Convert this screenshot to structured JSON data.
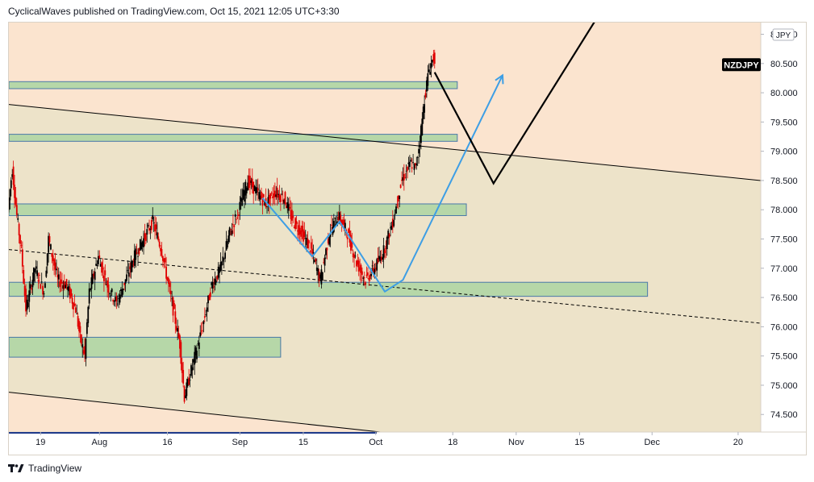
{
  "header": {
    "text": "CyclicalWaves published on TradingView.com, Oct 15, 2021 12:05 UTC+3:30"
  },
  "footer": {
    "brand": "TradingView",
    "logo": "tradingview-logo-icon"
  },
  "colors": {
    "background_upper": "#fbe4cf",
    "channel_fill": "#ede3c9",
    "zone_fill": "#b6d7a8",
    "zone_border": "#4a78a8",
    "candle_up": "#000000",
    "candle_down": "#e00000",
    "projection_blue": "#3d9ee5",
    "projection_black": "#000000",
    "symbol_badge": "#000000"
  },
  "chart_data": {
    "type": "candlestick",
    "symbol": "NZDJPY",
    "currency": "JPY",
    "y_axis": {
      "range": [
        74.2,
        81.2
      ],
      "ticks": [
        "74.500",
        "75.000",
        "75.500",
        "76.000",
        "76.500",
        "77.000",
        "77.500",
        "78.000",
        "78.500",
        "79.000",
        "79.500",
        "80.000",
        "80.500",
        "81.000"
      ]
    },
    "x_axis": {
      "range": [
        "2021-07-12",
        "2021-12-25"
      ],
      "ticks": [
        {
          "label": "19",
          "date": "2021-07-19"
        },
        {
          "label": "Aug",
          "date": "2021-08-01"
        },
        {
          "label": "16",
          "date": "2021-08-16"
        },
        {
          "label": "Sep",
          "date": "2021-09-01"
        },
        {
          "label": "15",
          "date": "2021-09-15"
        },
        {
          "label": "Oct",
          "date": "2021-10-01"
        },
        {
          "label": "18",
          "date": "2021-10-18"
        },
        {
          "label": "Nov",
          "date": "2021-11-01"
        },
        {
          "label": "15",
          "date": "2021-11-15"
        },
        {
          "label": "Dec",
          "date": "2021-12-01"
        },
        {
          "label": "20",
          "date": "2021-12-20"
        }
      ]
    },
    "price_path": [
      [
        "2021-07-12",
        78.0
      ],
      [
        "2021-07-13",
        78.7
      ],
      [
        "2021-07-14",
        77.9
      ],
      [
        "2021-07-15",
        77.3
      ],
      [
        "2021-07-16",
        76.3
      ],
      [
        "2021-07-18",
        77.0
      ],
      [
        "2021-07-20",
        76.6
      ],
      [
        "2021-07-21",
        77.5
      ],
      [
        "2021-07-23",
        76.8
      ],
      [
        "2021-07-25",
        76.7
      ],
      [
        "2021-07-27",
        76.3
      ],
      [
        "2021-07-28",
        75.8
      ],
      [
        "2021-07-29",
        75.5
      ],
      [
        "2021-07-30",
        76.6
      ],
      [
        "2021-08-01",
        77.2
      ],
      [
        "2021-08-03",
        76.7
      ],
      [
        "2021-08-05",
        76.4
      ],
      [
        "2021-08-07",
        76.8
      ],
      [
        "2021-08-09",
        77.2
      ],
      [
        "2021-08-11",
        77.5
      ],
      [
        "2021-08-13",
        77.8
      ],
      [
        "2021-08-15",
        77.3
      ],
      [
        "2021-08-17",
        76.5
      ],
      [
        "2021-08-19",
        75.7
      ],
      [
        "2021-08-20",
        74.8
      ],
      [
        "2021-08-22",
        75.4
      ],
      [
        "2021-08-24",
        76.0
      ],
      [
        "2021-08-26",
        76.7
      ],
      [
        "2021-08-28",
        77.0
      ],
      [
        "2021-08-30",
        77.6
      ],
      [
        "2021-09-01",
        78.0
      ],
      [
        "2021-09-03",
        78.5
      ],
      [
        "2021-09-05",
        78.3
      ],
      [
        "2021-09-07",
        78.1
      ],
      [
        "2021-09-09",
        78.3
      ],
      [
        "2021-09-11",
        78.2
      ],
      [
        "2021-09-13",
        77.8
      ],
      [
        "2021-09-15",
        77.6
      ],
      [
        "2021-09-17",
        77.3
      ],
      [
        "2021-09-19",
        76.8
      ],
      [
        "2021-09-21",
        77.6
      ],
      [
        "2021-09-23",
        77.9
      ],
      [
        "2021-09-25",
        77.6
      ],
      [
        "2021-09-27",
        77.1
      ],
      [
        "2021-09-29",
        76.8
      ],
      [
        "2021-10-01",
        77.0
      ],
      [
        "2021-10-03",
        77.3
      ],
      [
        "2021-10-05",
        77.8
      ],
      [
        "2021-10-07",
        78.5
      ],
      [
        "2021-10-09",
        78.8
      ],
      [
        "2021-10-10",
        78.7
      ],
      [
        "2021-10-11",
        79.2
      ],
      [
        "2021-10-12",
        79.9
      ],
      [
        "2021-10-13",
        80.4
      ],
      [
        "2021-10-14",
        80.6
      ]
    ],
    "zones": [
      {
        "from": "2021-07-12",
        "to": "2021-10-19",
        "low": 80.07,
        "high": 80.19
      },
      {
        "from": "2021-07-12",
        "to": "2021-10-19",
        "low": 79.17,
        "high": 79.29
      },
      {
        "from": "2021-07-12",
        "to": "2021-10-21",
        "low": 77.9,
        "high": 78.1
      },
      {
        "from": "2021-07-12",
        "to": "2021-11-30",
        "low": 76.52,
        "high": 76.76
      },
      {
        "from": "2021-07-12",
        "to": "2021-09-10",
        "low": 75.48,
        "high": 75.82
      }
    ],
    "trendlines": [
      {
        "style": "solid",
        "points": [
          [
            "2021-07-12",
            79.8
          ],
          [
            "2021-12-25",
            78.5
          ]
        ]
      },
      {
        "style": "dashed",
        "points": [
          [
            "2021-07-12",
            77.32
          ],
          [
            "2021-12-25",
            76.06
          ]
        ]
      },
      {
        "style": "solid",
        "points": [
          [
            "2021-07-12",
            74.88
          ],
          [
            "2021-10-02",
            74.2
          ]
        ]
      }
    ],
    "projection_blue": [
      [
        "2021-09-06",
        78.2
      ],
      [
        "2021-09-17",
        77.2
      ],
      [
        "2021-09-23",
        77.8
      ],
      [
        "2021-10-03",
        76.6
      ],
      [
        "2021-10-07",
        76.8
      ],
      [
        "2021-10-29",
        80.3
      ]
    ],
    "projection_black": [
      [
        "2021-10-14",
        80.35
      ],
      [
        "2021-10-27",
        78.45
      ],
      [
        "2021-11-19",
        81.3
      ]
    ]
  }
}
